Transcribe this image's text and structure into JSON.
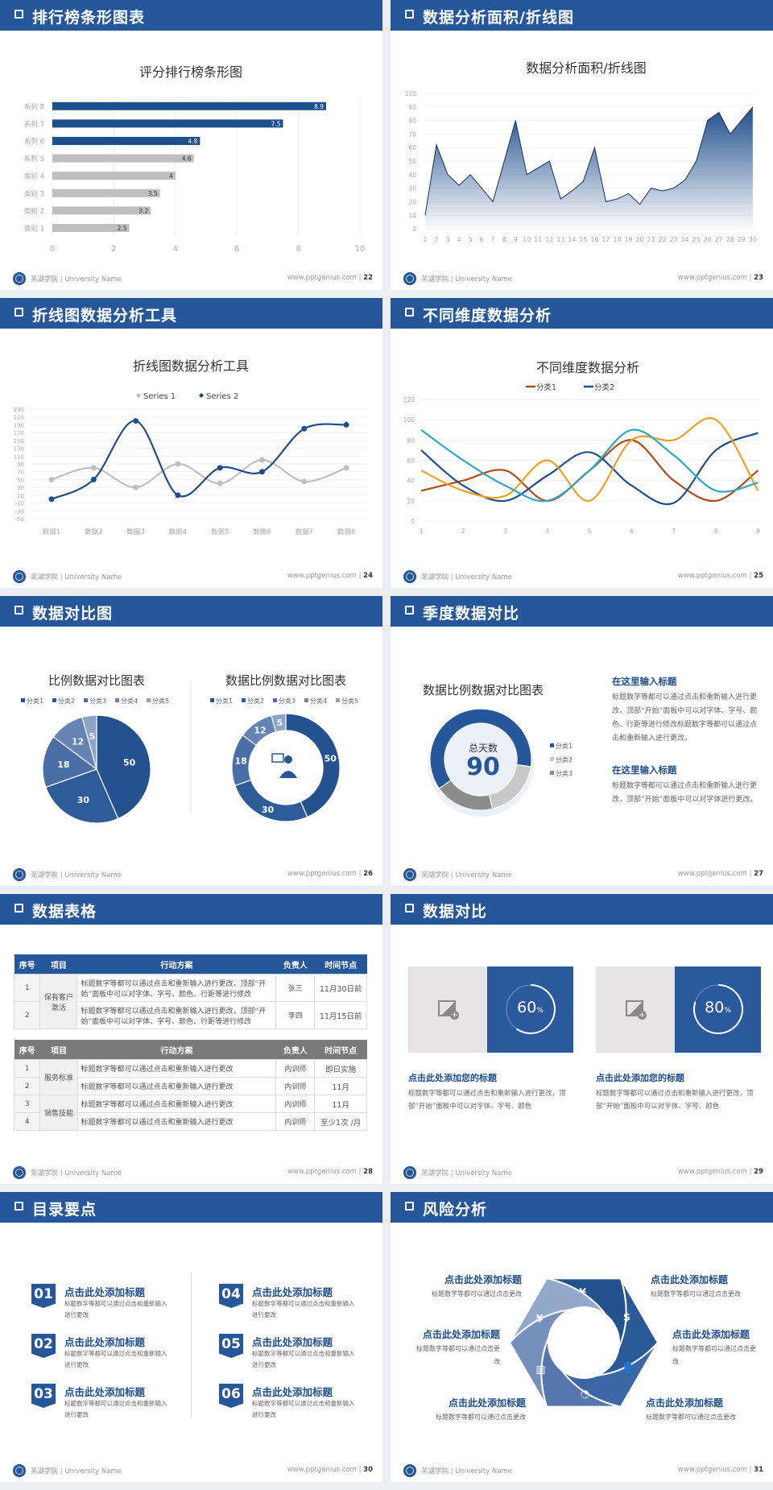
{
  "footer": {
    "school": "芜湖学院 | University Name",
    "website": "www.pptgenius.com"
  },
  "colors": {
    "primary": "#25579a",
    "gray_bar": "#bfbfbf",
    "orange": "#f0a020",
    "rust": "#b5491a",
    "teal": "#2aa9c4"
  },
  "slides": [
    {
      "title": "排行榜条形图表",
      "page": "22"
    },
    {
      "title": "数据分析面积/折线图",
      "page": "23"
    },
    {
      "title": "折线图数据分析工具",
      "page": "24"
    },
    {
      "title": "不同维度数据分析",
      "page": "25"
    },
    {
      "title": "数据对比图",
      "page": "26"
    },
    {
      "title": "季度数据对比",
      "page": "27",
      "blocks": [
        {
          "heading": "在这里输入标题",
          "text": "标题数字等都可以通过点击和重新输入进行更改，顶部“开始”面板中可以对字体、字号、颜色、行距等进行修改标题数字等都可以通过点击和重新输入进行更改。"
        },
        {
          "heading": "在这里输入标题",
          "text": "标题数字等都可以通过点击和重新输入进行更改，顶部“开始”面板中可以对字体进行更改。"
        }
      ]
    },
    {
      "title": "数据表格",
      "page": "28",
      "table1": {
        "headers": [
          "序号",
          "项目",
          "行动方案",
          "负责人",
          "时间节点"
        ],
        "group": "保有客户激活",
        "rows": [
          [
            "1",
            "标题数字等都可以通过点击和重新输入进行更改，顶部“开始”面板中可以对字体、字号、颜色、行距等进行修改",
            "张三",
            "11月30日前"
          ],
          [
            "2",
            "标题数字等都可以通过点击和重新输入进行更改，顶部“开始”面板中可以对字体、字号、颜色、行距等进行修改",
            "李四",
            "11月15日前"
          ]
        ]
      },
      "table2": {
        "headers": [
          "序号",
          "项目",
          "行动方案",
          "负责人",
          "时间节点"
        ],
        "groups": [
          "服务标准",
          "销售技能"
        ],
        "rows": [
          [
            "1",
            "标题数字等都可以通过点击和重新输入进行更改",
            "内训师",
            "即日实施"
          ],
          [
            "2",
            "标题数字等都可以通过点击和重新输入进行更改",
            "内训师",
            "11月"
          ],
          [
            "3",
            "标题数字等都可以通过点击和重新输入进行更改",
            "内训师",
            "11月"
          ],
          [
            "4",
            "标题数字等都可以通过点击和重新输入进行更改",
            "内训师",
            "至少1次 /月"
          ]
        ]
      }
    },
    {
      "title": "数据对比",
      "page": "29",
      "cards": [
        {
          "progress": 60,
          "value": "60",
          "unit": "%",
          "heading": "点击此处添加您的标题",
          "text": "标题数字等都可以通过点击和重新输入进行更改，顶部“开始”面板中可以对字体、字号、颜色",
          "icon": "image-add-icon"
        },
        {
          "progress": 80,
          "value": "80",
          "unit": "%",
          "heading": "点击此处添加您的标题",
          "text": "标题数字等都可以通过点击和重新输入进行更改，顶部“开始”面板中可以对字体、字号、颜色",
          "icon": "image-add-icon"
        }
      ]
    },
    {
      "title": "目录要点",
      "page": "30",
      "items": [
        {
          "num": "01",
          "heading": "点击此处添加标题",
          "text": "标题数字等都可以通过点击和重新输入进行更改"
        },
        {
          "num": "02",
          "heading": "点击此处添加标题",
          "text": "标题数字等都可以通过点击和重新输入进行更改"
        },
        {
          "num": "03",
          "heading": "点击此处添加标题",
          "text": "标题数字等都可以通过点击和重新输入进行更改"
        },
        {
          "num": "04",
          "heading": "点击此处添加标题",
          "text": "标题数字等都可以通过点击和重新输入进行更改"
        },
        {
          "num": "05",
          "heading": "点击此处添加标题",
          "text": "标题数字等都可以通过点击和重新输入进行更改"
        },
        {
          "num": "06",
          "heading": "点击此处添加标题",
          "text": "标题数字等都可以通过点击和重新输入进行更改"
        }
      ]
    },
    {
      "title": "风险分析",
      "page": "31",
      "items": [
        {
          "heading": "点击此处添加标题",
          "text": "标题数字等都可以通过点击更改",
          "icon": "money-bag-icon"
        },
        {
          "heading": "点击此处添加标题",
          "text": "标题数字等都可以通过点击更改",
          "icon": "coins-icon"
        },
        {
          "heading": "点击此处添加标题",
          "text": "标题数字等都可以通过点击更改",
          "icon": "users-icon"
        },
        {
          "heading": "点击此处添加标题",
          "text": "标题数字等都可以通过点击更改",
          "icon": "pie-chart-icon"
        },
        {
          "heading": "点击此处添加标题",
          "text": "标题数字等都可以通过点击更改",
          "icon": "building-icon"
        },
        {
          "heading": "点击此处添加标题",
          "text": "标题数字等都可以通过点击更改",
          "icon": "hand-money-icon"
        }
      ]
    }
  ],
  "chart_data": [
    {
      "type": "bar",
      "orientation": "horizontal",
      "title": "评分排行榜条形图",
      "categories": [
        "类别 1",
        "类别 2",
        "类别 3",
        "类别 4",
        "系列 5",
        "系列 6",
        "系列 7",
        "系列 8"
      ],
      "values": [
        2.5,
        3.2,
        3.5,
        4,
        4.6,
        4.8,
        7.5,
        8.9
      ],
      "bar_colors": [
        "#bfbfbf",
        "#bfbfbf",
        "#bfbfbf",
        "#bfbfbf",
        "#bfbfbf",
        "#1f4e8c",
        "#1f4e8c",
        "#1f4e8c"
      ],
      "xlim": [
        0,
        10
      ],
      "xticks": [
        0,
        2,
        4,
        6,
        8,
        10
      ],
      "data_labels": true,
      "grid": true
    },
    {
      "type": "area",
      "title": "数据分析面积/折线图",
      "x": [
        1,
        2,
        3,
        4,
        5,
        6,
        7,
        8,
        9,
        10,
        11,
        12,
        13,
        14,
        15,
        16,
        17,
        18,
        19,
        20,
        21,
        22,
        23,
        24,
        25,
        26,
        27,
        28,
        29,
        30
      ],
      "values": [
        10,
        62,
        40,
        32,
        40,
        30,
        20,
        50,
        80,
        40,
        45,
        50,
        22,
        28,
        35,
        60,
        20,
        22,
        26,
        18,
        30,
        28,
        30,
        36,
        50,
        80,
        86,
        70,
        80,
        90
      ],
      "ylim": [
        0,
        100
      ],
      "yticks": [
        0,
        10,
        20,
        30,
        40,
        50,
        60,
        70,
        80,
        90,
        100
      ],
      "color": "#1f4e8c",
      "grid": true
    },
    {
      "type": "line",
      "title": "折线图数据分析工具",
      "smooth": true,
      "legend": "top",
      "categories": [
        "数据1",
        "数据2",
        "数据3",
        "数据4",
        "数据5",
        "数据6",
        "数据7",
        "数据8"
      ],
      "series": [
        {
          "name": "Series 1",
          "values": [
            50,
            80,
            30,
            90,
            40,
            100,
            45,
            80
          ],
          "color": "#bfbfbf"
        },
        {
          "name": "Series 2",
          "values": [
            0,
            50,
            200,
            10,
            80,
            70,
            180,
            190
          ],
          "color": "#1f4e8c"
        }
      ],
      "ylim": [
        -50,
        230
      ],
      "yticks": [
        -50,
        -30,
        -10,
        10,
        30,
        50,
        70,
        90,
        110,
        130,
        150,
        170,
        190,
        210,
        230
      ],
      "grid": true
    },
    {
      "type": "line",
      "title": "不同维度数据分析",
      "smooth": true,
      "legend": "top",
      "x": [
        1,
        2,
        3,
        4,
        5,
        6,
        7,
        8,
        9
      ],
      "series": [
        {
          "name": "分类1",
          "values": [
            30,
            40,
            50,
            20,
            50,
            80,
            40,
            20,
            50
          ],
          "color": "#b5491a"
        },
        {
          "name": "分类2",
          "values": [
            70,
            35,
            20,
            45,
            68,
            35,
            18,
            70,
            87
          ],
          "color": "#1f4e8c"
        },
        {
          "values": [
            50,
            30,
            25,
            60,
            20,
            80,
            80,
            100,
            30
          ],
          "color": "#f0a020"
        },
        {
          "values": [
            90,
            60,
            35,
            20,
            50,
            90,
            65,
            30,
            38
          ],
          "color": "#2aa9c4"
        }
      ],
      "ylim": [
        0,
        120
      ],
      "yticks": [
        0,
        20,
        40,
        60,
        80,
        100,
        120
      ],
      "grid": true
    },
    {
      "type": "pie",
      "title": "比例数据对比图表",
      "legend": "top",
      "categories": [
        "分类1",
        "分类2",
        "分类3",
        "分类4",
        "分类5"
      ],
      "values": [
        50,
        30,
        18,
        12,
        5
      ],
      "colors": [
        "#24528f",
        "#2e5c99",
        "#4a6ea6",
        "#6684b3",
        "#8ba3c9"
      ]
    },
    {
      "type": "pie",
      "donut": true,
      "title": "数据比例数据对比图表",
      "legend": "top",
      "categories": [
        "分类1",
        "分类2",
        "分类3",
        "分类4",
        "分类5"
      ],
      "values": [
        50,
        30,
        18,
        12,
        5
      ],
      "colors": [
        "#24528f",
        "#2e5c99",
        "#4a6ea6",
        "#6684b3",
        "#8ba3c9"
      ],
      "center_icon": "presenter-icon"
    },
    {
      "type": "pie",
      "donut": true,
      "title": "数据比例数据对比图表",
      "legend": "right",
      "categories": [
        "分类1",
        "分类2",
        "分类3"
      ],
      "values": [
        62,
        19,
        19
      ],
      "colors": [
        "#25579a",
        "#c8c8c8",
        "#8c8c8c"
      ],
      "center_label": "总天数",
      "center_value": "90"
    }
  ]
}
